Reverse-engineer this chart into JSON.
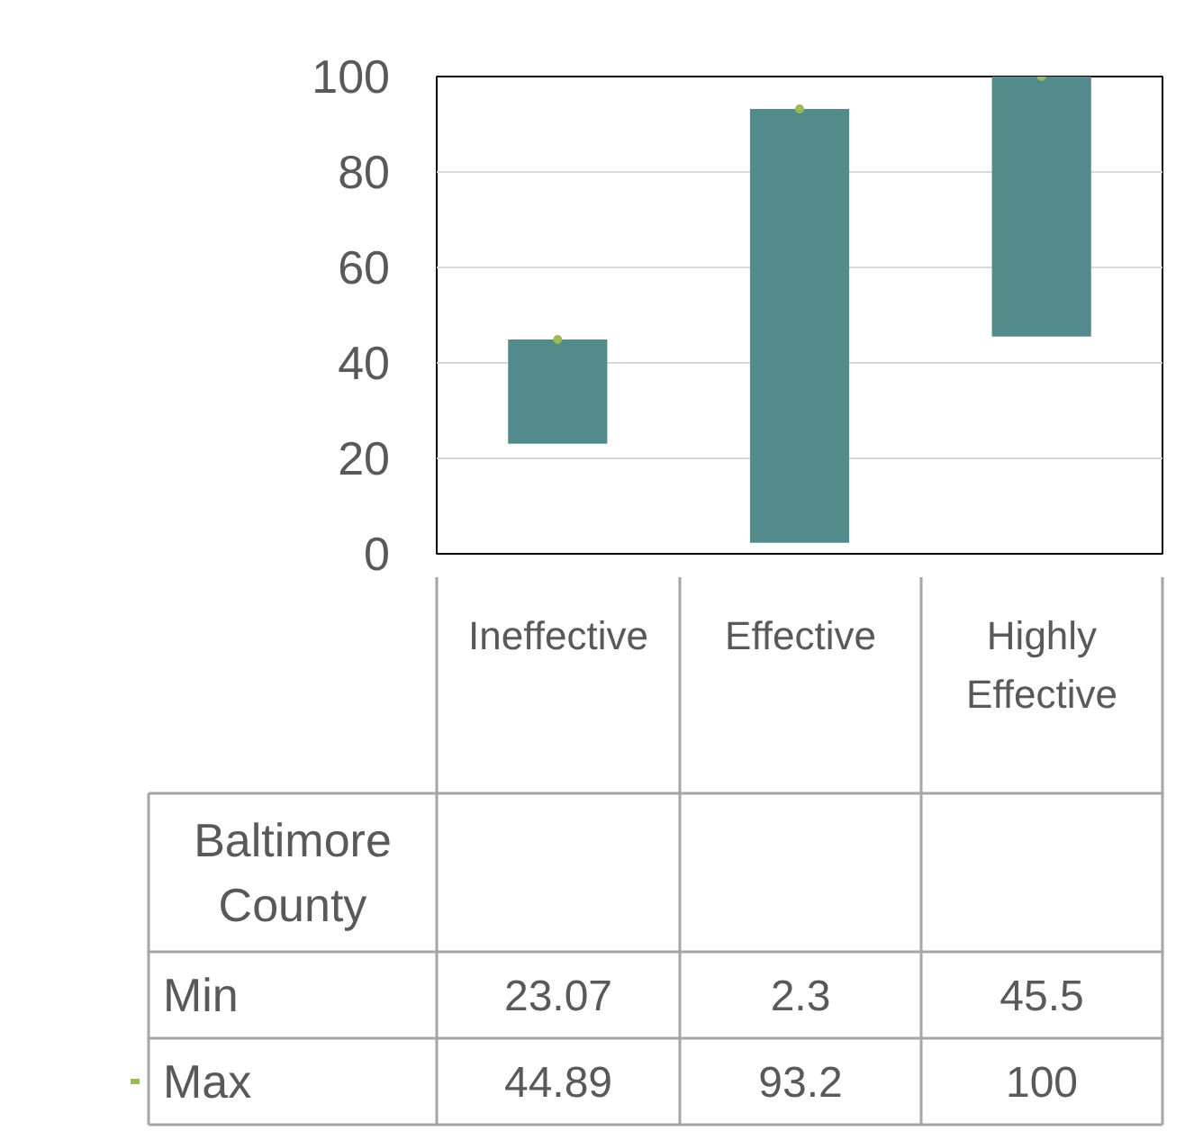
{
  "chart_data": [
    {
      "type": "bar",
      "categories": [
        "Ineffective",
        "Effective",
        "Highly Effective"
      ],
      "base": [
        23.07,
        2.3,
        45.5
      ],
      "values": [
        21.82,
        90.9,
        54.5
      ],
      "color": "#538a8c",
      "series": [
        {
          "name": "Max",
          "type": "scatter",
          "marker": "circle",
          "color": "#9bbb59",
          "values": [
            44.89,
            93.2,
            100
          ]
        }
      ],
      "legend": "bottom",
      "ylim": [
        0,
        100
      ],
      "yticks": [
        0,
        20,
        40,
        60,
        80,
        100
      ],
      "grid": "y"
    },
    {
      "type": "other",
      "annotations": [
        "Baltimore County",
        "Min",
        "23.07",
        "2.3",
        "45.5",
        "44.89",
        "93.2",
        "100"
      ]
    }
  ]
}
